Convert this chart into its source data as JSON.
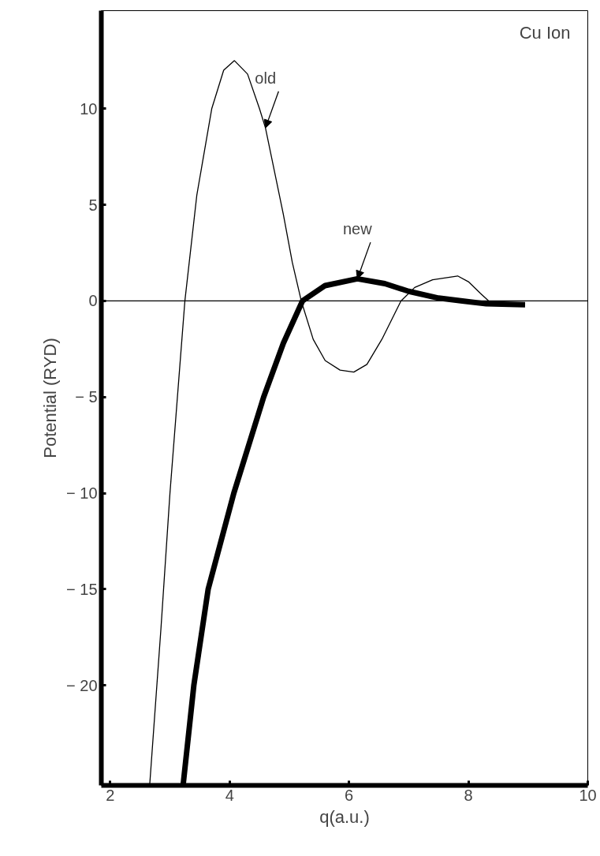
{
  "chart_data": {
    "type": "line",
    "xlabel": "q(a.u.)",
    "ylabel": "Potential (RYD)",
    "xlim": [
      1.85,
      10
    ],
    "ylim": [
      -25.2,
      15.1
    ],
    "xticks": [
      2,
      4,
      6,
      8,
      10
    ],
    "yticks": [
      10,
      5,
      0,
      {
        "value": -5,
        "label": "− 5"
      },
      {
        "value": -10,
        "label": "− 10"
      },
      {
        "value": -15,
        "label": "− 15"
      },
      {
        "value": -20,
        "label": "− 20"
      }
    ],
    "grid": false,
    "marker": "none",
    "line_style": "solid",
    "series": [
      {
        "color": "#000000",
        "x": [
          2.66,
          2.85,
          3.0,
          3.15,
          3.25,
          3.45,
          3.7,
          3.9,
          4.08,
          4.3,
          4.5,
          4.6,
          4.7,
          4.9,
          5.05,
          5.2,
          5.4,
          5.6,
          5.85,
          6.08,
          6.3,
          6.55,
          6.87,
          7.1,
          7.4,
          7.82,
          8.0,
          8.2,
          8.34
        ],
        "values": [
          -25.2,
          -17,
          -10,
          -4,
          0,
          5.5,
          10,
          12,
          12.5,
          11.8,
          10,
          9,
          7.5,
          4.5,
          2,
          0,
          -2,
          -3.1,
          -3.6,
          -3.7,
          -3.3,
          -2,
          0,
          0.7,
          1.1,
          1.3,
          1.0,
          0.4,
          0
        ]
      },
      {
        "color": "#000000",
        "x": [
          3.22,
          3.4,
          3.64,
          4.07,
          4.57,
          4.9,
          5.22,
          5.6,
          6.14,
          6.6,
          7.0,
          7.5,
          7.9,
          8.3,
          8.95
        ],
        "values": [
          -25.2,
          -20,
          -15,
          -10,
          -5,
          -2.2,
          0,
          0.8,
          1.15,
          0.9,
          0.5,
          0.15,
          0,
          -0.15,
          -0.2
        ]
      }
    ],
    "ref_lines": [
      {
        "axis": "y",
        "value": 0,
        "color": "#000000"
      }
    ],
    "annotations": [
      "Cu Ion",
      {
        "text": "old",
        "x": 4.6,
        "y": 9
      },
      {
        "text": "new",
        "x": 6.14,
        "y": 1.15
      }
    ]
  }
}
